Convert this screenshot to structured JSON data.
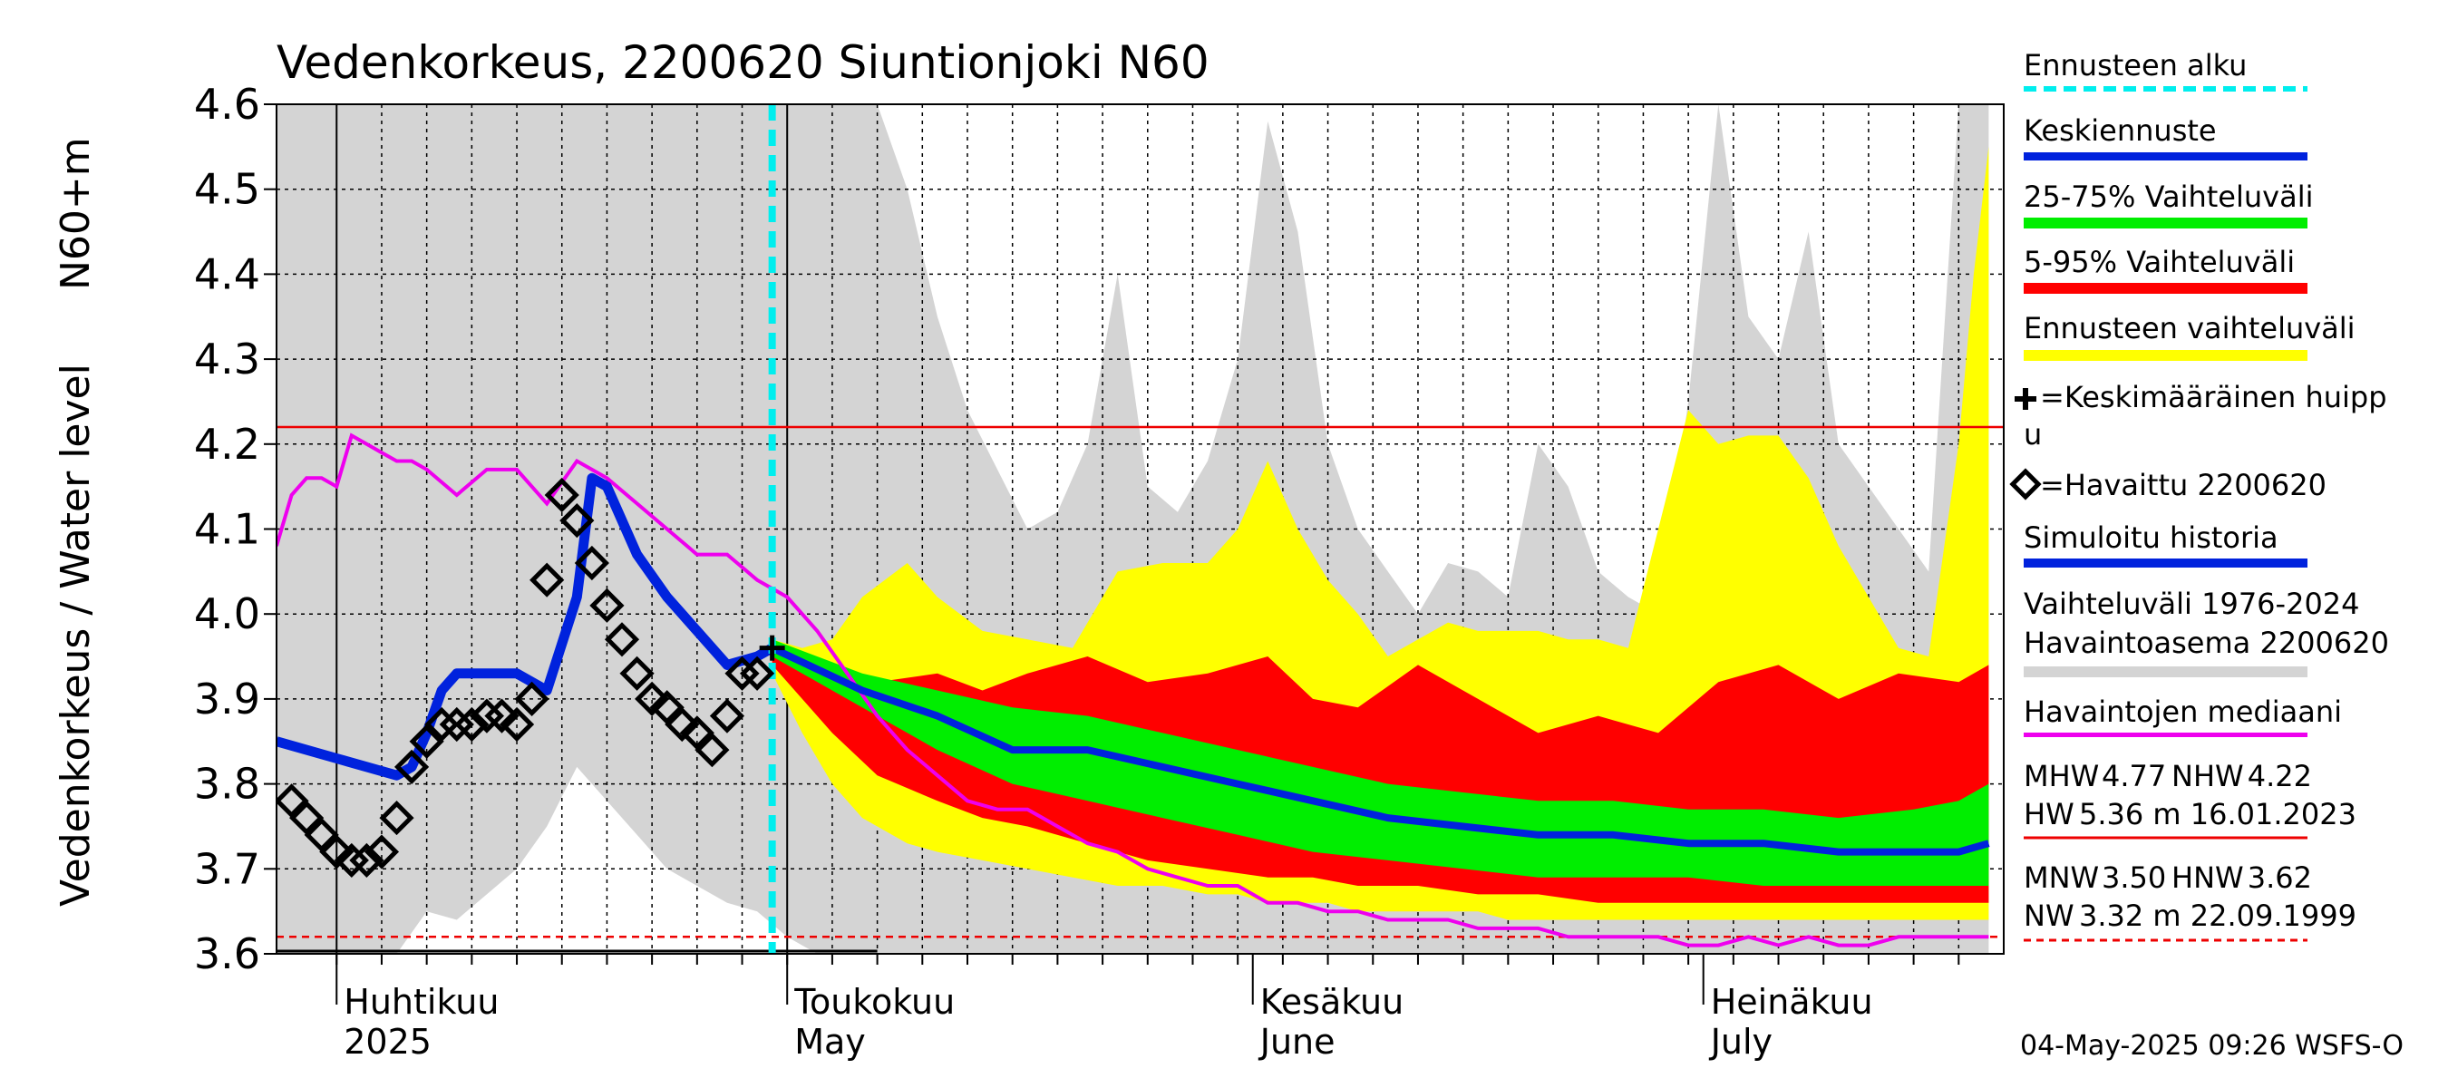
{
  "chart_data": {
    "type": "area",
    "title": "Vedenkorkeus, 2200620 Siuntionjoki N60",
    "ylabel_line1": "Vedenkorkeus / Water level",
    "ylabel_line2": "N60+m",
    "yticks": [
      "3.6",
      "3.7",
      "3.8",
      "3.9",
      "4.0",
      "4.1",
      "4.2",
      "4.3",
      "4.4",
      "4.5",
      "4.6"
    ],
    "ylim": [
      3.6,
      4.6
    ],
    "xlim": [
      -4,
      111
    ],
    "x_unit": "days from 2025-04-01",
    "month_ticks": [
      {
        "x": 0,
        "label1": "Huhtikuu",
        "label2": "2025"
      },
      {
        "x": 30,
        "label1": "Toukokuu",
        "label2": "May"
      },
      {
        "x": 61,
        "label1": "Kesäkuu",
        "label2": "June"
      },
      {
        "x": 91,
        "label1": "Heinäkuu",
        "label2": "July"
      }
    ],
    "forecast_start": 29,
    "red_line_level": 4.22,
    "red_dashed_level": 3.62,
    "observed": {
      "x": [
        -3,
        -2,
        -1,
        0,
        1,
        2,
        3,
        4,
        5,
        6,
        7,
        8,
        9,
        10,
        11,
        12,
        13,
        14,
        15,
        16,
        17,
        18,
        19,
        20,
        21,
        22,
        23,
        24,
        25,
        26,
        27,
        28
      ],
      "y": [
        3.78,
        3.76,
        3.74,
        3.72,
        3.71,
        3.71,
        3.72,
        3.76,
        3.82,
        3.85,
        3.87,
        3.87,
        3.87,
        3.88,
        3.88,
        3.87,
        3.9,
        4.04,
        4.14,
        4.11,
        4.06,
        4.01,
        3.97,
        3.93,
        3.9,
        3.89,
        3.87,
        3.86,
        3.84,
        3.88,
        3.93,
        3.93
      ]
    },
    "simulated_history": {
      "x": [
        -4,
        0,
        4,
        5,
        6,
        7,
        8,
        10,
        12,
        14,
        16,
        17,
        18,
        19,
        20,
        22,
        24,
        26,
        28,
        29
      ],
      "y": [
        3.85,
        3.83,
        3.81,
        3.82,
        3.86,
        3.91,
        3.93,
        3.93,
        3.93,
        3.91,
        4.02,
        4.16,
        4.15,
        4.11,
        4.07,
        4.02,
        3.98,
        3.94,
        3.95,
        3.96
      ]
    },
    "median_forecast": {
      "x": [
        29,
        35,
        40,
        45,
        50,
        55,
        60,
        65,
        70,
        75,
        80,
        85,
        90,
        95,
        100,
        105,
        108,
        110
      ],
      "y": [
        3.96,
        3.91,
        3.88,
        3.84,
        3.84,
        3.82,
        3.8,
        3.78,
        3.76,
        3.75,
        3.74,
        3.74,
        3.73,
        3.73,
        3.72,
        3.72,
        3.72,
        3.73
      ]
    },
    "band_25_75": {
      "x": [
        29,
        35,
        40,
        45,
        50,
        55,
        60,
        65,
        70,
        75,
        80,
        85,
        90,
        95,
        100,
        105,
        108,
        110
      ],
      "low": [
        3.95,
        3.89,
        3.84,
        3.8,
        3.78,
        3.76,
        3.74,
        3.72,
        3.71,
        3.7,
        3.69,
        3.69,
        3.69,
        3.68,
        3.68,
        3.68,
        3.68,
        3.68
      ],
      "high": [
        3.97,
        3.93,
        3.91,
        3.89,
        3.88,
        3.86,
        3.84,
        3.82,
        3.8,
        3.79,
        3.78,
        3.78,
        3.77,
        3.77,
        3.76,
        3.77,
        3.78,
        3.8
      ]
    },
    "band_5_95": {
      "x": [
        29,
        33,
        36,
        40,
        43,
        46,
        50,
        54,
        58,
        62,
        65,
        68,
        72,
        76,
        80,
        84,
        88,
        92,
        96,
        100,
        104,
        108,
        110
      ],
      "low": [
        3.94,
        3.86,
        3.81,
        3.78,
        3.76,
        3.75,
        3.73,
        3.71,
        3.7,
        3.69,
        3.69,
        3.68,
        3.68,
        3.67,
        3.67,
        3.66,
        3.66,
        3.66,
        3.66,
        3.66,
        3.66,
        3.66,
        3.66
      ],
      "high": [
        3.97,
        3.93,
        3.92,
        3.93,
        3.91,
        3.93,
        3.95,
        3.92,
        3.93,
        3.95,
        3.9,
        3.89,
        3.94,
        3.9,
        3.86,
        3.88,
        3.86,
        3.92,
        3.94,
        3.9,
        3.93,
        3.92,
        3.94
      ]
    },
    "band_forecast_range": {
      "x": [
        29,
        31,
        33,
        35,
        38,
        40,
        43,
        46,
        49,
        52,
        55,
        58,
        60,
        62,
        64,
        66,
        68,
        70,
        72,
        74,
        76,
        78,
        80,
        82,
        84,
        86,
        88,
        90,
        92,
        94,
        96,
        98,
        100,
        102,
        104,
        106,
        108,
        109,
        110
      ],
      "low": [
        3.93,
        3.86,
        3.8,
        3.76,
        3.73,
        3.72,
        3.71,
        3.7,
        3.69,
        3.68,
        3.68,
        3.67,
        3.67,
        3.66,
        3.66,
        3.66,
        3.65,
        3.65,
        3.65,
        3.65,
        3.65,
        3.64,
        3.64,
        3.64,
        3.64,
        3.64,
        3.64,
        3.64,
        3.64,
        3.64,
        3.64,
        3.64,
        3.64,
        3.64,
        3.64,
        3.64,
        3.64,
        3.64,
        3.64
      ],
      "high": [
        3.97,
        3.96,
        3.97,
        4.02,
        4.06,
        4.02,
        3.98,
        3.97,
        3.96,
        4.05,
        4.06,
        4.06,
        4.1,
        4.18,
        4.1,
        4.04,
        4.0,
        3.95,
        3.97,
        3.99,
        3.98,
        3.98,
        3.98,
        3.97,
        3.97,
        3.96,
        4.1,
        4.24,
        4.2,
        4.21,
        4.21,
        4.16,
        4.08,
        4.02,
        3.96,
        3.95,
        4.2,
        4.4,
        4.55
      ]
    },
    "band_history": {
      "x": [
        -4,
        -2,
        0,
        2,
        4,
        6,
        8,
        10,
        12,
        14,
        16,
        18,
        20,
        22,
        24,
        26,
        28,
        30,
        32,
        34,
        36,
        38,
        40,
        42,
        44,
        46,
        48,
        50,
        52,
        54,
        56,
        58,
        60,
        62,
        64,
        66,
        68,
        70,
        72,
        74,
        76,
        78,
        80,
        82,
        84,
        86,
        88,
        90,
        92,
        94,
        96,
        98,
        100,
        102,
        104,
        106,
        108,
        110
      ],
      "low": [
        3.6,
        3.6,
        3.6,
        3.6,
        3.6,
        3.65,
        3.64,
        3.67,
        3.7,
        3.75,
        3.82,
        3.78,
        3.74,
        3.7,
        3.68,
        3.66,
        3.65,
        3.62,
        3.6,
        3.6,
        3.6,
        3.6,
        3.6,
        3.6,
        3.6,
        3.6,
        3.6,
        3.6,
        3.6,
        3.6,
        3.6,
        3.6,
        3.6,
        3.6,
        3.6,
        3.6,
        3.6,
        3.6,
        3.6,
        3.6,
        3.6,
        3.6,
        3.6,
        3.6,
        3.6,
        3.6,
        3.6,
        3.6,
        3.6,
        3.6,
        3.6,
        3.6,
        3.6,
        3.6,
        3.6,
        3.6,
        3.6,
        3.6
      ],
      "high": [
        4.6,
        4.6,
        4.6,
        4.6,
        4.6,
        4.6,
        4.6,
        4.6,
        4.6,
        4.6,
        4.6,
        4.6,
        4.6,
        4.6,
        4.6,
        4.6,
        4.6,
        4.6,
        4.6,
        4.6,
        4.6,
        4.5,
        4.35,
        4.24,
        4.17,
        4.1,
        4.12,
        4.2,
        4.4,
        4.15,
        4.12,
        4.18,
        4.3,
        4.58,
        4.45,
        4.2,
        4.1,
        4.05,
        4.0,
        4.06,
        4.05,
        4.02,
        4.2,
        4.15,
        4.05,
        4.02,
        4.0,
        4.25,
        4.6,
        4.35,
        4.3,
        4.45,
        4.2,
        4.15,
        4.1,
        4.05,
        4.6,
        4.6
      ]
    },
    "history_median": {
      "x": [
        -4,
        -3,
        -2,
        -1,
        0,
        1,
        2,
        3,
        4,
        5,
        6,
        8,
        10,
        12,
        14,
        16,
        18,
        20,
        22,
        24,
        26,
        28,
        30,
        32,
        34,
        36,
        38,
        40,
        42,
        44,
        46,
        48,
        50,
        52,
        54,
        56,
        58,
        60,
        62,
        64,
        66,
        68,
        70,
        72,
        74,
        76,
        78,
        80,
        82,
        84,
        86,
        88,
        90,
        92,
        94,
        96,
        98,
        100,
        102,
        104,
        106,
        108,
        110
      ],
      "y": [
        4.08,
        4.14,
        4.16,
        4.16,
        4.15,
        4.21,
        4.2,
        4.19,
        4.18,
        4.18,
        4.17,
        4.14,
        4.17,
        4.17,
        4.13,
        4.18,
        4.16,
        4.13,
        4.1,
        4.07,
        4.07,
        4.04,
        4.02,
        3.98,
        3.93,
        3.88,
        3.84,
        3.81,
        3.78,
        3.77,
        3.77,
        3.75,
        3.73,
        3.72,
        3.7,
        3.69,
        3.68,
        3.68,
        3.66,
        3.66,
        3.65,
        3.65,
        3.64,
        3.64,
        3.64,
        3.63,
        3.63,
        3.63,
        3.62,
        3.62,
        3.62,
        3.62,
        3.61,
        3.61,
        3.62,
        3.61,
        3.62,
        3.61,
        3.61,
        3.62,
        3.62,
        3.62,
        3.62
      ]
    }
  },
  "legend": {
    "forecast_start": "Ennusteen alku",
    "mean_forecast": "Keskiennuste",
    "range_25_75": "25-75% Vaihteluväli",
    "range_5_95": "5-95% Vaihteluväli",
    "forecast_range": "Ennusteen vaihteluväli",
    "mean_peak_1": "=Keskimääräinen huipp",
    "mean_peak_2": "u",
    "observed": "=Havaittu 2200620",
    "simulated": "Simuloitu historia",
    "history_range_1": "Vaihteluväli 1976-2024",
    "history_range_2": " Havaintoasema 2200620",
    "median": "Havaintojen mediaani"
  },
  "stats": {
    "mhw_label": "MHW",
    "mhw_value": "4.77",
    "nhw_label": "NHW",
    "nhw_value": "4.22",
    "hw_label": "HW",
    "hw_value": "5.36 m 16.01.2023",
    "mnw_label": "MNW",
    "mnw_value": "3.50",
    "hnw_label": "HNW",
    "hnw_value": "3.62",
    "nw_label": "NW",
    "nw_value": "3.32 m 22.09.1999"
  },
  "footer": "04-May-2025 09:26 WSFS-O",
  "colors": {
    "history_band": "#d4d4d4",
    "forecast_range": "#ffff00",
    "band_5_95": "#ff0000",
    "band_25_75": "#00ee00",
    "mean_line": "#0022dd",
    "median_line": "#ee00ee",
    "forecast_start": "#00eeee",
    "red_line": "#ee0000"
  }
}
